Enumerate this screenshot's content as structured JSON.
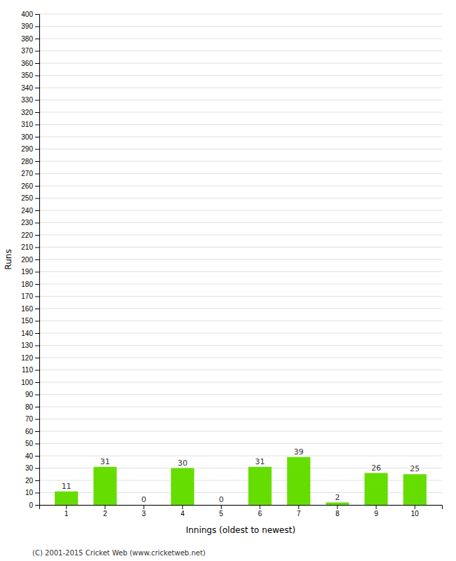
{
  "chart_data": {
    "type": "bar",
    "categories": [
      "1",
      "2",
      "3",
      "4",
      "5",
      "6",
      "7",
      "8",
      "9",
      "10"
    ],
    "values": [
      11,
      31,
      0,
      30,
      0,
      31,
      39,
      2,
      26,
      25
    ],
    "color": "#66dd00",
    "xlabel": "Innings (oldest to newest)",
    "ylabel": "Runs",
    "ylim": [
      0,
      400
    ],
    "yticks": [
      0,
      10,
      20,
      30,
      40,
      50,
      60,
      70,
      80,
      90,
      100,
      110,
      120,
      130,
      140,
      150,
      160,
      170,
      180,
      190,
      200,
      210,
      220,
      230,
      240,
      250,
      260,
      270,
      280,
      290,
      300,
      310,
      320,
      330,
      340,
      350,
      360,
      370,
      380,
      390,
      400
    ],
    "grid": true,
    "data_labels": true,
    "annotations": [
      "(C) 2001-2015 Cricket Web (www.cricketweb.net)"
    ]
  }
}
